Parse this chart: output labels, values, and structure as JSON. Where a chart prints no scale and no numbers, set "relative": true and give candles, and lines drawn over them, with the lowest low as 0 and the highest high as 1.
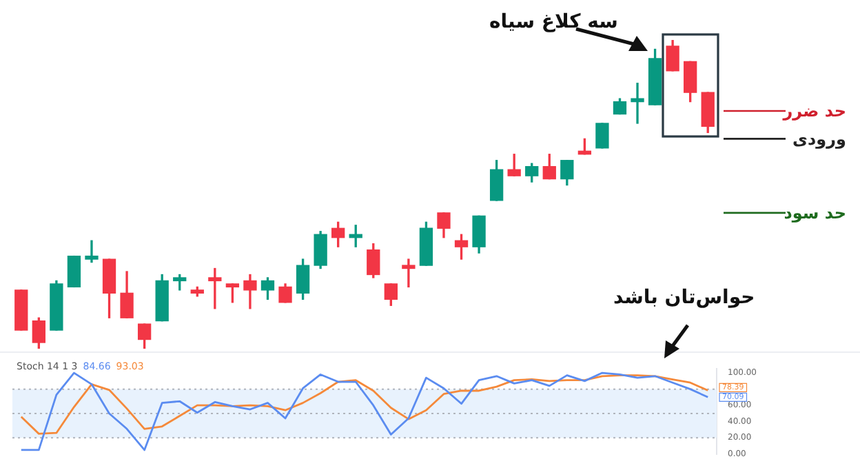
{
  "chart_data": [
    {
      "type": "candlestick",
      "relative": true,
      "legend": false,
      "grid": false,
      "tick_labels": false,
      "categories": [
        null,
        null,
        null,
        null,
        null,
        null,
        null,
        null,
        null,
        null,
        null,
        null,
        null,
        null,
        null,
        null,
        null,
        null,
        null,
        null,
        null,
        null,
        null,
        null,
        null,
        null,
        null,
        null,
        null,
        null,
        null,
        null,
        null,
        null,
        null,
        null,
        null,
        null,
        null,
        null
      ],
      "ohlc": [
        [
          0.19,
          0.19,
          0.06,
          0.06
        ],
        [
          0.09,
          0.1,
          0.0,
          0.02
        ],
        [
          0.06,
          0.22,
          0.06,
          0.21
        ],
        [
          0.2,
          0.3,
          0.2,
          0.3
        ],
        [
          0.29,
          0.35,
          0.28,
          0.3
        ],
        [
          0.29,
          0.29,
          0.1,
          0.18
        ],
        [
          0.18,
          0.25,
          0.1,
          0.1
        ],
        [
          0.08,
          0.08,
          0,
          0.03
        ],
        [
          0.09,
          0.24,
          0.09,
          0.22
        ],
        [
          0.22,
          0.24,
          0.19,
          0.23
        ],
        [
          0.19,
          0.2,
          0.17,
          0.18
        ],
        [
          0.23,
          0.26,
          0.13,
          0.22
        ],
        [
          0.21,
          0.21,
          0.15,
          0.2
        ],
        [
          0.22,
          0.24,
          0.13,
          0.19
        ],
        [
          0.19,
          0.23,
          0.16,
          0.22
        ],
        [
          0.2,
          0.21,
          0.15,
          0.15
        ],
        [
          0.18,
          0.29,
          0.16,
          0.27
        ],
        [
          0.27,
          0.38,
          0.26,
          0.37
        ],
        [
          0.39,
          0.41,
          0.33,
          0.36
        ],
        [
          0.36,
          0.4,
          0.33,
          0.37
        ],
        [
          0.32,
          0.34,
          0.23,
          0.24
        ],
        [
          0.21,
          0.21,
          0.14,
          0.16
        ],
        [
          0.27,
          0.29,
          0.2,
          0.26
        ],
        [
          0.27,
          0.41,
          0.27,
          0.39
        ],
        [
          0.44,
          0.44,
          0.36,
          0.39
        ],
        [
          0.35,
          0.37,
          0.29,
          0.33
        ],
        [
          0.33,
          0.43,
          0.31,
          0.43
        ],
        [
          0.48,
          0.61,
          0.48,
          0.58
        ],
        [
          0.58,
          0.63,
          0.56,
          0.56
        ],
        [
          0.56,
          0.6,
          0.54,
          0.59
        ],
        [
          0.59,
          0.63,
          0.55,
          0.55
        ],
        [
          0.55,
          0.61,
          0.53,
          0.61
        ],
        [
          0.64,
          0.68,
          0.63,
          0.63
        ],
        [
          0.65,
          0.73,
          0.65,
          0.73
        ],
        [
          0.76,
          0.81,
          0.76,
          0.8
        ],
        [
          0.8,
          0.86,
          0.73,
          0.81
        ],
        [
          0.79,
          0.97,
          0.79,
          0.94
        ],
        [
          0.98,
          1,
          0.9,
          0.9
        ],
        [
          0.93,
          0.93,
          0.8,
          0.83
        ],
        [
          0.83,
          0.83,
          0.7,
          0.72
        ]
      ],
      "colors": [
        "#f23645",
        "#f23645",
        "#089981",
        "#089981",
        "#089981",
        "#f23645",
        "#f23645",
        "#f23645",
        "#089981",
        "#089981",
        "#f23645",
        "#f23645",
        "#f23645",
        "#f23645",
        "#089981",
        "#f23645",
        "#089981",
        "#089981",
        "#f23645",
        "#089981",
        "#f23645",
        "#f23645",
        "#f23645",
        "#089981",
        "#f23645",
        "#f23645",
        "#089981",
        "#089981",
        "#f23645",
        "#089981",
        "#f23645",
        "#089981",
        "#f23645",
        "#089981",
        "#089981",
        "#089981",
        "#089981",
        "#f23645",
        "#f23645",
        "#f23645"
      ],
      "ref_lines": [
        {
          "axis": "y",
          "value": 0.77,
          "label": "حد ضرر",
          "color": "#d0202e"
        },
        {
          "axis": "y",
          "value": 0.68,
          "label": "ورودی",
          "color": "#222222"
        },
        {
          "axis": "y",
          "value": 0.44,
          "label": "حد سود",
          "color": "#1e6b1e"
        }
      ],
      "annotations": [
        "سه کلاغ سیاه",
        "حواس‌تان باشد"
      ]
    },
    {
      "type": "line",
      "title": "Stoch 14 1 3",
      "legend": false,
      "grid": false,
      "tick_labels": "y",
      "categories": [
        null,
        null,
        null,
        null,
        null,
        null,
        null,
        null,
        null,
        null,
        null,
        null,
        null,
        null,
        null,
        null,
        null,
        null,
        null,
        null,
        null,
        null,
        null,
        null,
        null,
        null,
        null,
        null,
        null,
        null,
        null,
        null,
        null,
        null,
        null,
        null,
        null,
        null,
        null,
        null
      ],
      "ylim": [
        0,
        105
      ],
      "yticks": [
        {
          "value": 0,
          "label": "0.00"
        },
        {
          "value": 20,
          "label": "20.00"
        },
        {
          "value": 40,
          "label": "40.00"
        },
        {
          "value": 60,
          "label": "60.00"
        },
        {
          "value": 100,
          "label": "100.00"
        }
      ],
      "series": [
        {
          "color": "#5b8cf0",
          "values": [
            5,
            5,
            73,
            100,
            86,
            50,
            31,
            5,
            63,
            65,
            51,
            64,
            59,
            55,
            63,
            44,
            81,
            98,
            89,
            89,
            60,
            24,
            44,
            94,
            81,
            62,
            91,
            96,
            87,
            91,
            84,
            97,
            90,
            100,
            98,
            94,
            96,
            88,
            80,
            70.09
          ],
          "value_labels": [
            null,
            null,
            null,
            null,
            null,
            null,
            null,
            null,
            null,
            null,
            null,
            null,
            null,
            null,
            null,
            null,
            null,
            null,
            null,
            null,
            null,
            null,
            null,
            null,
            null,
            null,
            null,
            null,
            null,
            null,
            null,
            null,
            null,
            null,
            null,
            null,
            null,
            null,
            null,
            "70.09"
          ]
        },
        {
          "color": "#f5893a",
          "values": [
            46,
            25,
            26,
            58,
            86,
            79,
            56,
            31,
            34,
            47,
            60,
            60,
            59,
            60,
            59,
            54,
            63,
            75,
            89,
            91,
            78,
            57,
            43,
            54,
            74,
            78,
            78,
            83,
            91,
            92,
            90,
            91,
            91,
            96,
            97,
            97,
            96,
            92,
            88,
            78.39
          ],
          "value_labels": [
            null,
            null,
            null,
            null,
            null,
            null,
            null,
            null,
            null,
            null,
            null,
            null,
            null,
            null,
            null,
            null,
            null,
            null,
            null,
            null,
            null,
            null,
            null,
            null,
            null,
            null,
            null,
            null,
            null,
            null,
            null,
            null,
            null,
            null,
            null,
            null,
            null,
            null,
            null,
            "78.39"
          ]
        }
      ],
      "bands": [
        {
          "axis": "y",
          "from": 20,
          "to": 80,
          "color": "#e8f2fd"
        }
      ],
      "ref_lines": [
        {
          "axis": "y",
          "value": 80,
          "color": "#b0b4bc",
          "line_style": "dotted"
        },
        {
          "axis": "y",
          "value": 50,
          "color": "#b0b4bc",
          "line_style": "dotted"
        },
        {
          "axis": "y",
          "value": 20,
          "color": "#b0b4bc",
          "line_style": "dotted"
        }
      ],
      "annotations": [
        "84.66",
        "93.03"
      ]
    }
  ]
}
